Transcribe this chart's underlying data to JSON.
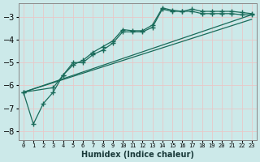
{
  "xlabel": "Humidex (Indice chaleur)",
  "background_color": "#cce9e9",
  "grid_color": "#e8c8c8",
  "line_color": "#1a6b5a",
  "xlim": [
    -0.5,
    23.5
  ],
  "ylim": [
    -8.4,
    -2.4
  ],
  "yticks": [
    -8,
    -7,
    -6,
    -5,
    -4,
    -3
  ],
  "xtick_labels": [
    "0",
    "1",
    "2",
    "3",
    "4",
    "5",
    "6",
    "7",
    "8",
    "9",
    "10",
    "11",
    "12",
    "13",
    "14",
    "15",
    "16",
    "17",
    "18",
    "19",
    "20",
    "21",
    "22",
    "23"
  ],
  "series": [
    {
      "x": [
        0,
        1,
        2,
        3,
        4,
        5,
        6,
        7,
        8,
        9,
        10,
        11,
        12,
        13,
        14,
        15,
        16,
        17,
        18,
        19,
        20,
        21,
        22,
        23
      ],
      "y": [
        -6.3,
        -7.7,
        -6.8,
        -6.3,
        -5.55,
        -5.0,
        -5.0,
        -4.65,
        -4.45,
        -4.15,
        -3.65,
        -3.65,
        -3.65,
        -3.45,
        -2.65,
        -2.75,
        -2.75,
        -2.65,
        -2.75,
        -2.75,
        -2.75,
        -2.75,
        -2.8,
        -2.85
      ],
      "has_markers": true
    },
    {
      "x": [
        0,
        3,
        4,
        5,
        6,
        7,
        8,
        9,
        10,
        11,
        12,
        13,
        14,
        15,
        16,
        17,
        18,
        19,
        20,
        21,
        22,
        23
      ],
      "y": [
        -6.3,
        -6.1,
        -5.55,
        -5.1,
        -4.9,
        -4.55,
        -4.3,
        -4.05,
        -3.55,
        -3.6,
        -3.6,
        -3.35,
        -2.6,
        -2.7,
        -2.75,
        -2.75,
        -2.85,
        -2.85,
        -2.85,
        -2.85,
        -2.9,
        -2.9
      ],
      "has_markers": true
    },
    {
      "x": [
        0,
        23
      ],
      "y": [
        -6.3,
        -2.9
      ],
      "has_markers": false
    },
    {
      "x": [
        0,
        23
      ],
      "y": [
        -6.3,
        -3.1
      ],
      "has_markers": false
    }
  ],
  "marker": "+",
  "markersize": 4.0,
  "linewidth": 0.9
}
